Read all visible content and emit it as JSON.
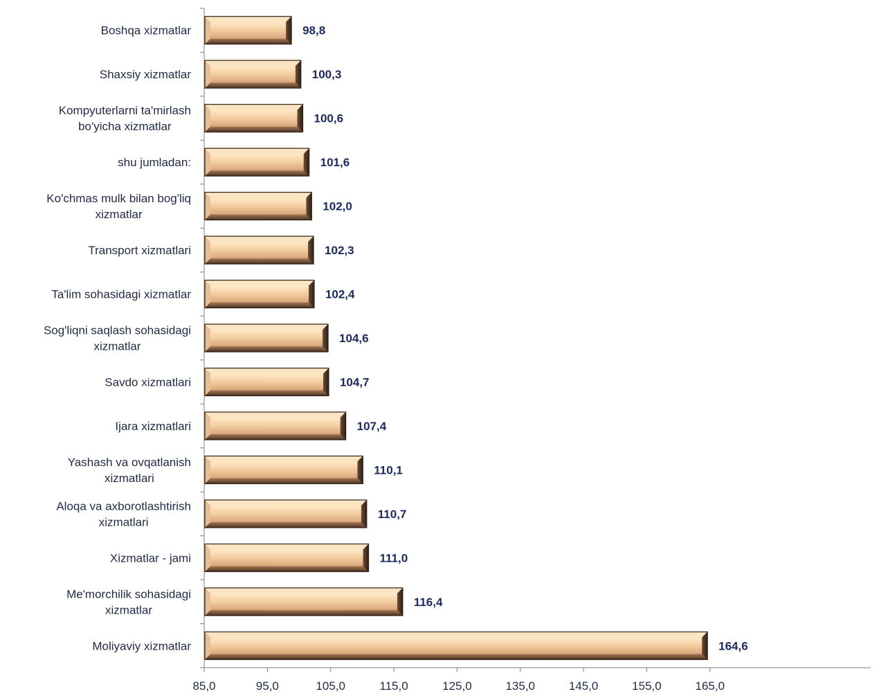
{
  "chart_data": {
    "type": "bar",
    "orientation": "horizontal",
    "categories": [
      "Boshqa xizmatlar",
      "Shaxsiy xizmatlar",
      "Kompyuterlarni ta'mirlash bo'yicha xizmatlar",
      "shu jumladan:",
      "Ko'chmas mulk bilan bog'liq xizmatlar",
      "Transport xizmatlari",
      "Ta'lim sohasidagi xizmatlar",
      "Sog'liqni saqlash sohasidagi xizmatlar",
      "Savdo xizmatlari",
      "Ijara xizmatlari",
      "Yashash va ovqatlanish xizmatlari",
      "Aloqa va axborotlashtirish xizmatlari",
      "Xizmatlar - jami",
      "Me'morchilik sohasidagi xizmatlar",
      "Moliyaviy xizmatlar"
    ],
    "label_lines": [
      [
        "Boshqa xizmatlar"
      ],
      [
        "Shaxsiy xizmatlar"
      ],
      [
        "Kompyuterlarni ta'mirlash",
        "bo'yicha xizmatlar"
      ],
      [
        "shu jumladan:"
      ],
      [
        "Ko'chmas mulk bilan bog'liq",
        "xizmatlar"
      ],
      [
        "Transport xizmatlari"
      ],
      [
        "Ta'lim sohasidagi xizmatlar"
      ],
      [
        "Sog'liqni saqlash sohasidagi",
        "xizmatlar"
      ],
      [
        "Savdo xizmatlari"
      ],
      [
        "Ijara xizmatlari"
      ],
      [
        "Yashash va ovqatlanish",
        "xizmatlari"
      ],
      [
        "Aloqa va axborotlashtirish",
        "xizmatlari"
      ],
      [
        "Xizmatlar - jami"
      ],
      [
        "Me'morchilik sohasidagi",
        "xizmatlar"
      ],
      [
        "Moliyaviy xizmatlar"
      ]
    ],
    "values": [
      98.8,
      100.3,
      100.6,
      101.6,
      102.0,
      102.3,
      102.4,
      104.6,
      104.7,
      107.4,
      110.1,
      110.7,
      111.0,
      116.4,
      164.6
    ],
    "value_labels": [
      "98,8",
      "100,3",
      "100,6",
      "101,6",
      "102,0",
      "102,3",
      "102,4",
      "104,6",
      "104,7",
      "107,4",
      "110,1",
      "110,7",
      "111,0",
      "116,4",
      "164,6"
    ],
    "xlim": [
      85,
      170
    ],
    "xticks": [
      85,
      95,
      105,
      115,
      125,
      135,
      145,
      155,
      165
    ],
    "xtick_labels": [
      "85,0",
      "95,0",
      "105,0",
      "115,0",
      "125,0",
      "135,0",
      "145,0",
      "155,0",
      "165,0"
    ],
    "title": "",
    "xlabel": "",
    "ylabel": "",
    "grid": false,
    "legend": "none",
    "colors": {
      "bar_light": "#f7d9b4",
      "bar_mid": "#d9a77c",
      "bar_dark": "#5a3d2a",
      "bar_edge": "#2e2016",
      "value_text": "#1b2a5c",
      "label_text": "#1f2a44",
      "axis": "#7f7f7f"
    }
  }
}
